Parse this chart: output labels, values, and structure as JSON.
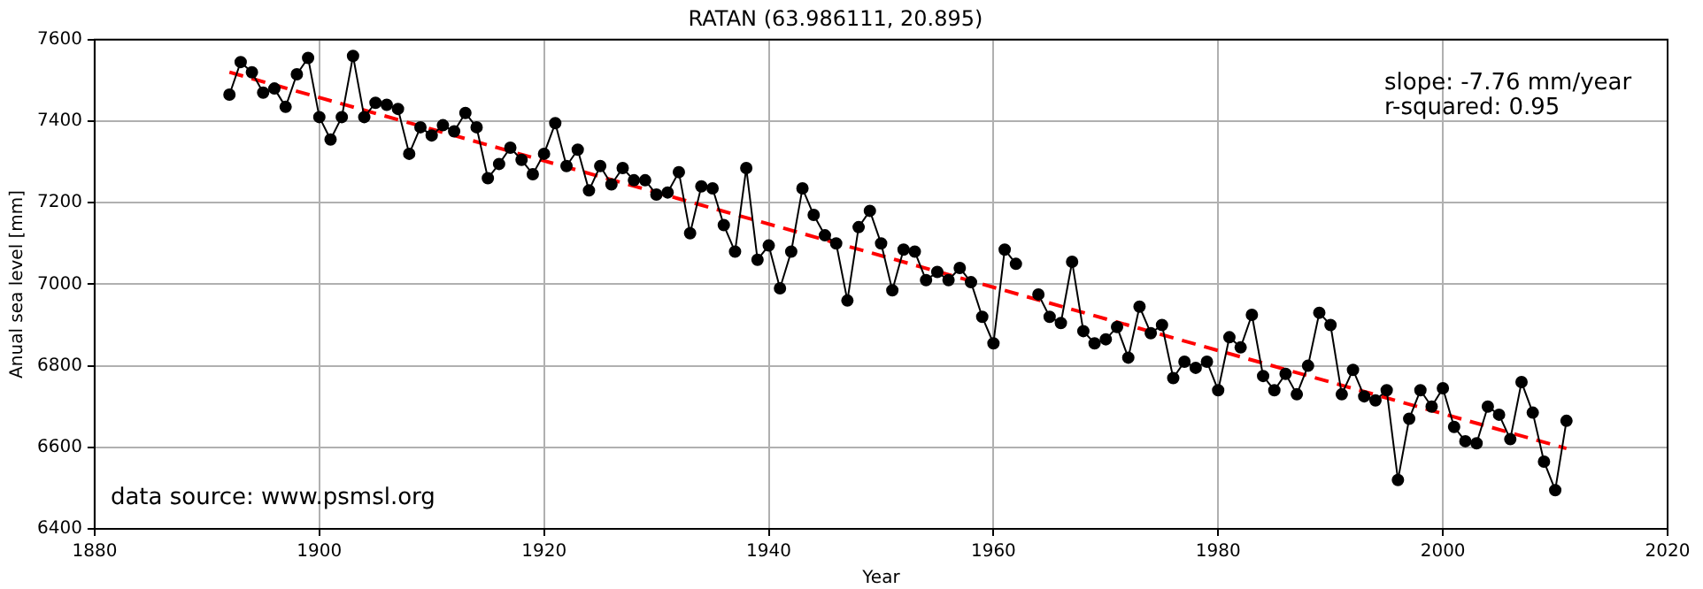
{
  "chart_data": {
    "type": "line",
    "title": "RATAN (63.986111, 20.895)",
    "xlabel": "Year",
    "ylabel": "Anual sea level [mm]",
    "annotations": [
      "slope: -7.76 mm/year",
      "r-squared: 0.95",
      "data source: www.psmsl.org"
    ],
    "x": [
      1892,
      1893,
      1894,
      1895,
      1896,
      1897,
      1898,
      1899,
      1900,
      1901,
      1902,
      1903,
      1904,
      1905,
      1906,
      1907,
      1908,
      1909,
      1910,
      1911,
      1912,
      1913,
      1914,
      1915,
      1916,
      1917,
      1918,
      1919,
      1920,
      1921,
      1922,
      1923,
      1924,
      1925,
      1926,
      1927,
      1928,
      1929,
      1930,
      1931,
      1932,
      1933,
      1934,
      1935,
      1936,
      1937,
      1938,
      1939,
      1940,
      1941,
      1942,
      1943,
      1944,
      1945,
      1946,
      1947,
      1948,
      1949,
      1950,
      1951,
      1952,
      1953,
      1954,
      1955,
      1956,
      1957,
      1958,
      1959,
      1960,
      1961,
      1962,
      1963,
      1964,
      1965,
      1966,
      1967,
      1968,
      1969,
      1970,
      1971,
      1972,
      1973,
      1974,
      1975,
      1976,
      1977,
      1978,
      1979,
      1980,
      1981,
      1982,
      1983,
      1984,
      1985,
      1986,
      1987,
      1988,
      1989,
      1990,
      1991,
      1992,
      1993,
      1994,
      1995,
      1996,
      1997,
      1998,
      1999,
      2000,
      2001,
      2002,
      2003,
      2004,
      2005,
      2006,
      2007,
      2008,
      2009,
      2010,
      2011
    ],
    "series": [
      {
        "color": "#000000",
        "marker": "circle",
        "line_style": "solid",
        "values": [
          7465,
          7545,
          7520,
          7470,
          7480,
          7435,
          7515,
          7555,
          7410,
          7355,
          7410,
          7560,
          7410,
          7445,
          7440,
          7430,
          7320,
          7385,
          7365,
          7390,
          7375,
          7420,
          7385,
          7260,
          7295,
          7335,
          7305,
          7270,
          7320,
          7395,
          7290,
          7330,
          7230,
          7290,
          7245,
          7285,
          7255,
          7255,
          7220,
          7225,
          7275,
          7125,
          7240,
          7235,
          7145,
          7080,
          7285,
          7060,
          7095,
          6990,
          7080,
          7235,
          7170,
          7120,
          7100,
          6960,
          7140,
          7180,
          7100,
          6985,
          7085,
          7080,
          7010,
          7030,
          7010,
          7040,
          7005,
          6920,
          6855,
          7085,
          7050,
          null,
          6975,
          6920,
          6905,
          7055,
          6885,
          6855,
          6865,
          6895,
          6820,
          6945,
          6880,
          6900,
          6770,
          6810,
          6795,
          6810,
          6740,
          6870,
          6845,
          6925,
          6775,
          6740,
          6780,
          6730,
          6800,
          6930,
          6900,
          6730,
          6790,
          6725,
          6715,
          6740,
          6520,
          6670,
          6740,
          6700,
          6745,
          6650,
          6615,
          6610,
          6700,
          6680,
          6620,
          6760,
          6685,
          6565,
          6495,
          6665
        ]
      },
      {
        "type": "line",
        "color": "#ff0000",
        "marker": "none",
        "line_style": "dashed",
        "x": [
          1892,
          2011
        ],
        "values": [
          7520,
          6597
        ]
      }
    ],
    "xlim": [
      1880,
      2020
    ],
    "xticks": [
      1880,
      1900,
      1920,
      1940,
      1960,
      1980,
      2000,
      2020
    ],
    "ylim": [
      6400,
      7600
    ],
    "yticks": [
      6400,
      6600,
      6800,
      7000,
      7200,
      7400,
      7600
    ],
    "grid": true,
    "legend": false
  }
}
